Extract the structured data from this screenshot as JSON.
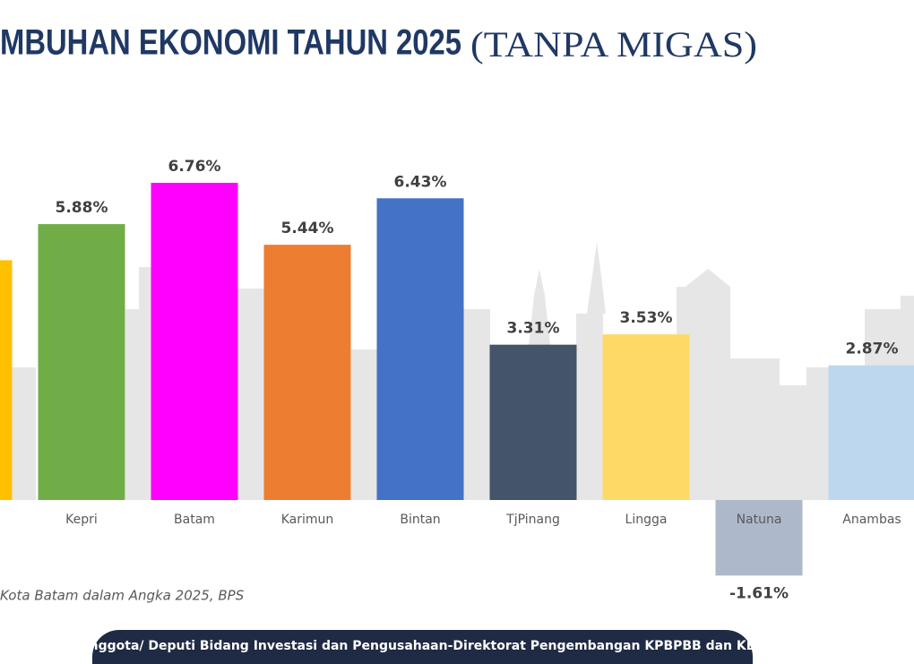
{
  "chart_data": {
    "type": "bar",
    "title": "MBUHAN EKONOMI TAHUN 2025",
    "subtitle": "(TANPA MIGAS)",
    "categories": [
      null,
      "Kepri",
      "Batam",
      "Karimun",
      "Bintan",
      "TjPinang",
      "Lingga",
      "Natuna",
      "Anambas"
    ],
    "values": [
      5.11,
      5.88,
      6.76,
      5.44,
      6.43,
      3.31,
      3.53,
      -1.61,
      2.87
    ],
    "value_labels": [
      null,
      "5.88%",
      "6.76%",
      "5.44%",
      "6.43%",
      "3.31%",
      "3.53%",
      "-1.61%",
      "2.87%"
    ],
    "colors": [
      "#ffc000",
      "#70ad47",
      "#ff00ff",
      "#ed7d31",
      "#4472c4",
      "#44546a",
      "#ffd966",
      "#adb9ca",
      "#bdd7ee"
    ],
    "source": "Kota Batam dalam Angka 2025, BPS",
    "footer": "Anggota/ Deputi Bidang Investasi dan Pengusahaan-Direktorat Pengembangan KPBPBB dan KEK"
  }
}
